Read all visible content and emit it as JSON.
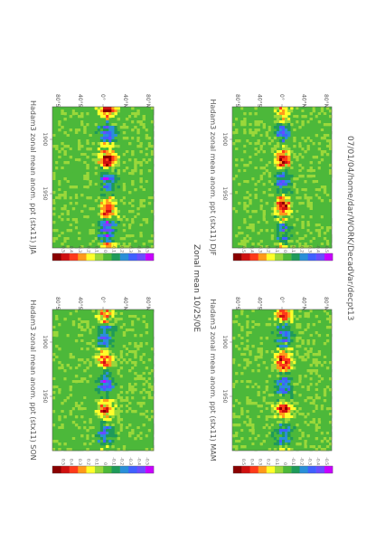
{
  "header": {
    "path": "07/01/04/home/dar/WORK/DecadVar/decpt13",
    "main_title": "Zonal mean 10/25/0E"
  },
  "colorbar": {
    "levels": [
      "-0.5",
      "-0.4",
      "-0.3",
      "-0.2",
      "-0.1",
      "0",
      "0.1",
      "0.2",
      "0.3",
      "0.4",
      "0.5"
    ],
    "colors": [
      "#c800ff",
      "#6a4cff",
      "#4060ff",
      "#2a8fd8",
      "#1f9a5a",
      "#4cb83a",
      "#9ad83a",
      "#ffff2a",
      "#ff9a1a",
      "#ff3a1a",
      "#d01010",
      "#8a0000"
    ]
  },
  "chart_data": [
    {
      "type": "heatmap",
      "title": "Hadam3 zonal mean anom. ppt (stx11) DJF",
      "xlabel": "",
      "ylabel": "",
      "x_ticks": [
        "1900",
        "1950"
      ],
      "xlim": [
        1870,
        2000
      ],
      "y_ticks": [
        "80°N",
        "40°N",
        "0°",
        "40°S",
        "80°S"
      ],
      "ylim": [
        -90,
        90
      ],
      "colorbar_ticks": [
        "-0.5",
        "-0.4",
        "-0.3",
        "-0.2",
        "-0.1",
        "0",
        "0.1",
        "0.2",
        "0.3",
        "0.4",
        "0.5"
      ],
      "band_center_lat": 2,
      "band_halfwidth_lat": 12,
      "band_intensity": 0.45,
      "seed": 11
    },
    {
      "type": "heatmap",
      "title": "Hadam3 zonal mean anom. ppt (stx11) MAM",
      "xlabel": "",
      "ylabel": "",
      "x_ticks": [
        "1900",
        "1950"
      ],
      "xlim": [
        1870,
        2000
      ],
      "y_ticks": [
        "80°N",
        "40°N",
        "0°",
        "40°S",
        "80°S"
      ],
      "ylim": [
        -90,
        90
      ],
      "colorbar_ticks": [
        "-0.5",
        "-0.4",
        "-0.3",
        "-0.2",
        "-0.1",
        "0",
        "0.1",
        "0.2",
        "0.3",
        "0.4",
        "0.5"
      ],
      "band_center_lat": 3,
      "band_halfwidth_lat": 14,
      "band_intensity": 0.4,
      "seed": 23
    },
    {
      "type": "heatmap",
      "title": "Hadam3 zonal mean anom. ppt (stx11) JJA",
      "xlabel": "",
      "ylabel": "",
      "x_ticks": [
        "1900",
        "1950"
      ],
      "xlim": [
        1870,
        2000
      ],
      "y_ticks": [
        "80°N",
        "40°N",
        "0°",
        "40°S",
        "80°S"
      ],
      "ylim": [
        -90,
        90
      ],
      "colorbar_ticks": [
        "-0.5",
        "-0.4",
        "-0.3",
        "-0.2",
        "-0.1",
        "0",
        "0.1",
        "0.2",
        "0.3",
        "0.4",
        "0.5"
      ],
      "band_center_lat": 8,
      "band_halfwidth_lat": 13,
      "band_intensity": 0.5,
      "seed": 37
    },
    {
      "type": "heatmap",
      "title": "Hadam3 zonal mean anom. ppt (stx11) SON",
      "xlabel": "",
      "ylabel": "",
      "x_ticks": [
        "1900",
        "1950"
      ],
      "xlim": [
        1870,
        2000
      ],
      "y_ticks": [
        "80°N",
        "40°N",
        "0°",
        "40°S",
        "80°S"
      ],
      "ylim": [
        -90,
        90
      ],
      "colorbar_ticks": [
        "-0.5",
        "-0.4",
        "-0.3",
        "-0.2",
        "-0.1",
        "0",
        "0.1",
        "0.2",
        "0.3",
        "0.4",
        "0.5"
      ],
      "band_center_lat": 4,
      "band_halfwidth_lat": 13,
      "band_intensity": 0.42,
      "seed": 53
    }
  ]
}
